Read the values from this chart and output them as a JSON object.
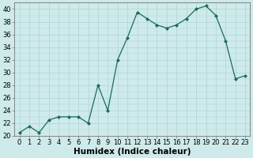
{
  "x": [
    0,
    1,
    2,
    3,
    4,
    5,
    6,
    7,
    8,
    9,
    10,
    11,
    12,
    13,
    14,
    15,
    16,
    17,
    18,
    19,
    20,
    21,
    22,
    23
  ],
  "y": [
    20.5,
    21.5,
    20.5,
    22.5,
    23.0,
    23.0,
    23.0,
    22.0,
    28.0,
    24.0,
    32.0,
    35.5,
    39.5,
    38.5,
    37.5,
    37.0,
    37.5,
    38.5,
    40.0,
    40.5,
    39.0,
    35.0,
    29.0,
    29.5
  ],
  "xlabel": "Humidex (Indice chaleur)",
  "line_color": "#1a6b5a",
  "marker": "D",
  "marker_size": 2.0,
  "bg_color": "#ceeaea",
  "grid_color": "#aed4d4",
  "ylim": [
    20,
    41
  ],
  "xlim": [
    -0.5,
    23.5
  ],
  "yticks": [
    20,
    22,
    24,
    26,
    28,
    30,
    32,
    34,
    36,
    38,
    40
  ],
  "xticks": [
    0,
    1,
    2,
    3,
    4,
    5,
    6,
    7,
    8,
    9,
    10,
    11,
    12,
    13,
    14,
    15,
    16,
    17,
    18,
    19,
    20,
    21,
    22,
    23
  ],
  "tick_fontsize": 6.0,
  "xlabel_fontsize": 7.5
}
